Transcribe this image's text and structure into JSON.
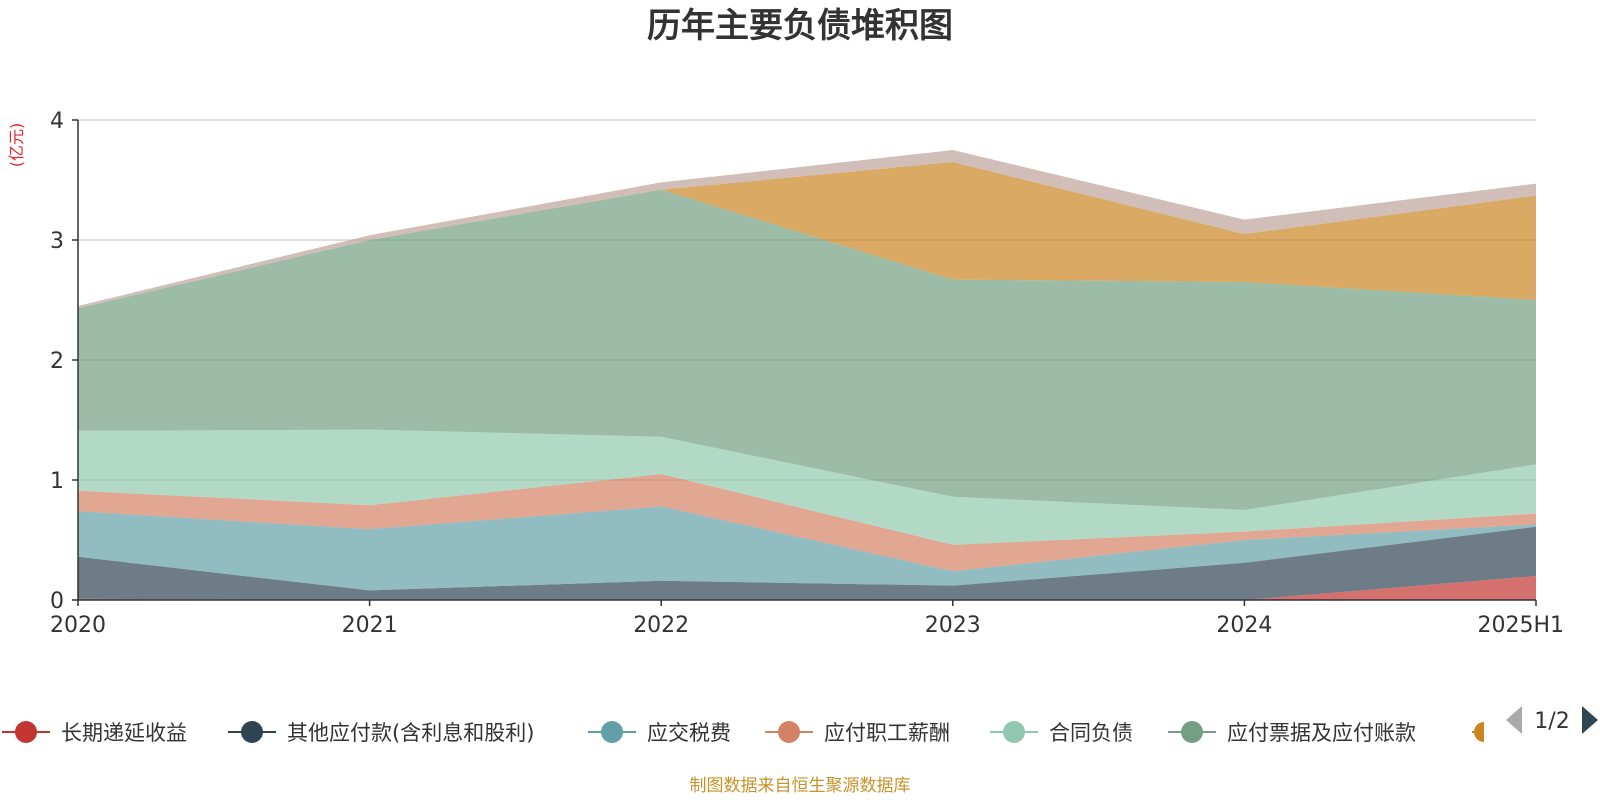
{
  "chart_data": {
    "type": "area",
    "stacked": true,
    "title": "历年主要负债堆积图",
    "ylabel": "(亿元)",
    "categories": [
      "2020",
      "2021",
      "2022",
      "2023",
      "2024",
      "2025H1"
    ],
    "ylim": [
      0,
      4
    ],
    "yticks": [
      "0",
      "1",
      "2",
      "3",
      "4"
    ],
    "grid": true,
    "legend_position": "bottom",
    "series": [
      {
        "name": "长期递延收益",
        "color": "#c23531",
        "values": [
          0.01,
          0.0,
          0.0,
          0.0,
          0.0,
          0.2
        ]
      },
      {
        "name": "其他应付款(含利息和股利)",
        "color": "#2f4554",
        "values": [
          0.35,
          0.08,
          0.16,
          0.12,
          0.31,
          0.41
        ]
      },
      {
        "name": "应交税费",
        "color": "#61a0a8",
        "values": [
          0.38,
          0.51,
          0.62,
          0.12,
          0.19,
          0.02
        ]
      },
      {
        "name": "应付职工薪酬",
        "color": "#d48265",
        "values": [
          0.17,
          0.2,
          0.27,
          0.22,
          0.07,
          0.09
        ]
      },
      {
        "name": "合同负债",
        "color": "#91c7ae",
        "values": [
          0.5,
          0.63,
          0.31,
          0.4,
          0.18,
          0.41
        ]
      },
      {
        "name": "应付票据及应付账款",
        "color": "#749f83",
        "values": [
          1.02,
          1.58,
          2.06,
          1.81,
          1.9,
          1.37
        ]
      },
      {
        "name": "",
        "color": "#ca8622",
        "values": [
          0.0,
          0.0,
          0.0,
          0.98,
          0.4,
          0.87
        ]
      },
      {
        "name": "",
        "color": "#bda29a",
        "values": [
          0.02,
          0.04,
          0.06,
          0.1,
          0.12,
          0.1
        ]
      }
    ]
  },
  "legend": {
    "page_indicator": "1/2",
    "prev_icon": "triangle-left-icon",
    "next_icon": "triangle-right-icon"
  },
  "source_note": "制图数据来自恒生聚源数据库"
}
